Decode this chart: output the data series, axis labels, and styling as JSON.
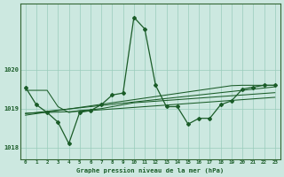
{
  "title": "Graphe pression niveau de la mer (hPa)",
  "x_hours": [
    0,
    1,
    2,
    3,
    4,
    5,
    6,
    7,
    8,
    9,
    10,
    11,
    12,
    13,
    14,
    15,
    16,
    17,
    18,
    19,
    20,
    21,
    22,
    23
  ],
  "pressure_main": [
    1019.55,
    1019.1,
    1018.9,
    1018.65,
    1018.1,
    1018.9,
    1018.95,
    1019.1,
    1019.35,
    1019.4,
    1021.35,
    1021.05,
    1019.6,
    1019.05,
    1019.05,
    1018.6,
    1018.75,
    1018.75,
    1019.1,
    1019.2,
    1019.5,
    1019.55,
    1019.6,
    1019.6
  ],
  "trend_line1": [
    1019.47,
    1019.47,
    1019.47,
    1019.05,
    1018.9,
    1018.95,
    1018.97,
    1019.0,
    1019.05,
    1019.1,
    1019.15,
    1019.17,
    1019.19,
    1019.21,
    1019.23,
    1019.25,
    1019.27,
    1019.29,
    1019.31,
    1019.33,
    1019.35,
    1019.37,
    1019.39,
    1019.41
  ],
  "trend_line2": [
    1018.88,
    1018.89,
    1018.9,
    1018.91,
    1018.92,
    1018.93,
    1018.95,
    1018.97,
    1018.99,
    1019.01,
    1019.03,
    1019.05,
    1019.07,
    1019.09,
    1019.11,
    1019.13,
    1019.15,
    1019.17,
    1019.19,
    1019.21,
    1019.23,
    1019.25,
    1019.27,
    1019.29
  ],
  "trend_line3": [
    1018.83,
    1018.87,
    1018.91,
    1018.95,
    1018.99,
    1019.03,
    1019.07,
    1019.11,
    1019.15,
    1019.19,
    1019.23,
    1019.27,
    1019.31,
    1019.35,
    1019.39,
    1019.43,
    1019.47,
    1019.51,
    1019.55,
    1019.59,
    1019.6,
    1019.6,
    1019.6,
    1019.6
  ],
  "trend_line4": [
    1018.87,
    1018.9,
    1018.93,
    1018.96,
    1018.99,
    1019.02,
    1019.05,
    1019.08,
    1019.11,
    1019.14,
    1019.17,
    1019.2,
    1019.23,
    1019.26,
    1019.29,
    1019.32,
    1019.35,
    1019.38,
    1019.41,
    1019.44,
    1019.47,
    1019.5,
    1019.53,
    1019.56
  ],
  "ylim": [
    1017.7,
    1021.7
  ],
  "yticks": [
    1018,
    1019,
    1020
  ],
  "bg_color": "#cce8e0",
  "grid_color": "#99ccbb",
  "line_color": "#1a5c28",
  "marker_color": "#1a5c28",
  "axis_color": "#336633",
  "label_color": "#1a5c28",
  "title_color": "#1a5c28"
}
